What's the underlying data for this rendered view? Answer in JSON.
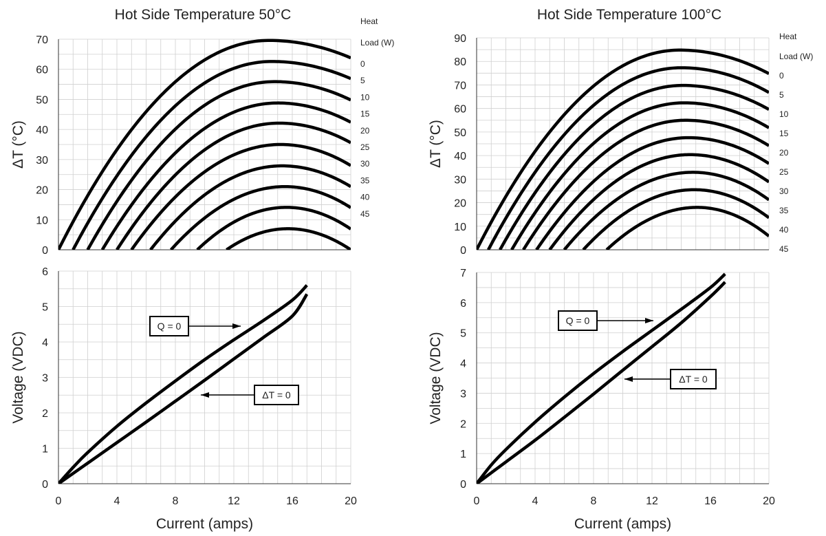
{
  "colors": {
    "curve": "#000000",
    "grid": "#cfcfcf",
    "text": "#222222",
    "background": "#ffffff"
  },
  "chart_data": [
    {
      "id": "left-top",
      "type": "line",
      "title": "Hot Side Temperature 50°C",
      "xlabel": "",
      "ylabel": "ΔT (°C)",
      "xlim": [
        0,
        20
      ],
      "ylim": [
        0,
        70
      ],
      "xticks": [],
      "yticks": [
        0,
        10,
        20,
        30,
        40,
        50,
        60,
        70
      ],
      "grid": true,
      "legend_title": [
        "Heat",
        "Load (W)"
      ],
      "legend_placement": "right",
      "curve_shape": "parabola",
      "series": [
        {
          "name": "0",
          "x0": 0.0,
          "peak_x": 14.4,
          "peak_y": 69.6,
          "end_y": 63.8
        },
        {
          "name": "5",
          "x0": 1.0,
          "peak_x": 14.6,
          "peak_y": 62.6,
          "end_y": 56.9
        },
        {
          "name": "10",
          "x0": 2.0,
          "peak_x": 14.8,
          "peak_y": 55.9,
          "end_y": 49.8
        },
        {
          "name": "15",
          "x0": 3.0,
          "peak_x": 15.0,
          "peak_y": 48.8,
          "end_y": 42.4
        },
        {
          "name": "20",
          "x0": 4.0,
          "peak_x": 15.1,
          "peak_y": 42.1,
          "end_y": 35.6
        },
        {
          "name": "25",
          "x0": 5.0,
          "peak_x": 15.2,
          "peak_y": 35.0,
          "end_y": 28.0
        },
        {
          "name": "30",
          "x0": 6.3,
          "peak_x": 15.3,
          "peak_y": 27.9,
          "end_y": 21.0
        },
        {
          "name": "35",
          "x0": 7.7,
          "peak_x": 15.5,
          "peak_y": 21.0,
          "end_y": 14.0
        },
        {
          "name": "40",
          "x0": 9.5,
          "peak_x": 15.6,
          "peak_y": 14.1,
          "end_y": 6.9
        },
        {
          "name": "45",
          "x0": 11.5,
          "peak_x": 15.7,
          "peak_y": 7.0,
          "end_y": 0.0
        }
      ]
    },
    {
      "id": "left-bottom",
      "type": "line",
      "title": "",
      "xlabel": "Current (amps)",
      "ylabel": "Voltage (VDC)",
      "xlim": [
        0,
        20
      ],
      "ylim": [
        0,
        6
      ],
      "xticks": [
        0,
        4,
        8,
        12,
        16,
        20
      ],
      "yticks": [
        0,
        1,
        2,
        3,
        4,
        5,
        6
      ],
      "grid": true,
      "series": [
        {
          "name": "Q = 0",
          "x": [
            0,
            1,
            2,
            4,
            6,
            8,
            10,
            12,
            14,
            16,
            17
          ],
          "y": [
            0,
            0.46,
            0.88,
            1.62,
            2.28,
            2.9,
            3.5,
            4.06,
            4.6,
            5.18,
            5.6
          ]
        },
        {
          "name": "ΔT = 0",
          "x": [
            0,
            2,
            4,
            6,
            8,
            10,
            12,
            14,
            16,
            17
          ],
          "y": [
            0,
            0.58,
            1.16,
            1.74,
            2.33,
            2.92,
            3.52,
            4.12,
            4.73,
            5.35
          ]
        }
      ],
      "annotations": [
        {
          "text": "Q = 0",
          "target": "Q = 0"
        },
        {
          "text": "ΔT = 0",
          "target": "ΔT = 0"
        }
      ]
    },
    {
      "id": "right-top",
      "type": "line",
      "title": "Hot Side Temperature 100°C",
      "xlabel": "",
      "ylabel": "ΔT (°C)",
      "xlim": [
        0,
        20
      ],
      "ylim": [
        0,
        90
      ],
      "xticks": [],
      "yticks": [
        0,
        10,
        20,
        30,
        40,
        50,
        60,
        70,
        80,
        90
      ],
      "grid": true,
      "legend_title": [
        "Heat",
        "Load (W)"
      ],
      "legend_placement": "right",
      "curve_shape": "parabola",
      "series": [
        {
          "name": "0",
          "x0": 0.0,
          "peak_x": 13.9,
          "peak_y": 84.8,
          "end_y": 74.8
        },
        {
          "name": "5",
          "x0": 0.8,
          "peak_x": 14.0,
          "peak_y": 77.3,
          "end_y": 66.8
        },
        {
          "name": "10",
          "x0": 1.6,
          "peak_x": 14.1,
          "peak_y": 69.8,
          "end_y": 59.6
        },
        {
          "name": "15",
          "x0": 2.4,
          "peak_x": 14.2,
          "peak_y": 62.4,
          "end_y": 51.8
        },
        {
          "name": "20",
          "x0": 3.2,
          "peak_x": 14.3,
          "peak_y": 55.0,
          "end_y": 44.2
        },
        {
          "name": "25",
          "x0": 4.1,
          "peak_x": 14.5,
          "peak_y": 47.6,
          "end_y": 36.6
        },
        {
          "name": "30",
          "x0": 5.0,
          "peak_x": 14.6,
          "peak_y": 40.4,
          "end_y": 28.8
        },
        {
          "name": "35",
          "x0": 6.0,
          "peak_x": 14.8,
          "peak_y": 32.9,
          "end_y": 21.2
        },
        {
          "name": "40",
          "x0": 7.3,
          "peak_x": 14.9,
          "peak_y": 25.5,
          "end_y": 13.6
        },
        {
          "name": "45",
          "x0": 8.9,
          "peak_x": 15.1,
          "peak_y": 18.0,
          "end_y": 5.8
        }
      ]
    },
    {
      "id": "right-bottom",
      "type": "line",
      "title": "",
      "xlabel": "Current (amps)",
      "ylabel": "Voltage (VDC)",
      "xlim": [
        0,
        20
      ],
      "ylim": [
        0,
        7
      ],
      "xticks": [
        0,
        4,
        8,
        12,
        16,
        20
      ],
      "yticks": [
        0,
        1,
        2,
        3,
        4,
        5,
        6,
        7
      ],
      "grid": true,
      "series": [
        {
          "name": "Q = 0",
          "x": [
            0,
            1,
            2,
            4,
            6,
            8,
            10,
            12,
            14,
            16,
            17
          ],
          "y": [
            0,
            0.62,
            1.13,
            2.04,
            2.87,
            3.65,
            4.38,
            5.08,
            5.78,
            6.5,
            6.95
          ]
        },
        {
          "name": "ΔT = 0",
          "x": [
            0,
            2,
            4,
            6,
            8,
            10,
            12,
            14,
            16,
            17
          ],
          "y": [
            0,
            0.72,
            1.44,
            2.2,
            2.97,
            3.76,
            4.54,
            5.33,
            6.2,
            6.68
          ]
        }
      ],
      "annotations": [
        {
          "text": "Q = 0",
          "target": "Q = 0"
        },
        {
          "text": "ΔT = 0",
          "target": "ΔT = 0"
        }
      ]
    }
  ]
}
